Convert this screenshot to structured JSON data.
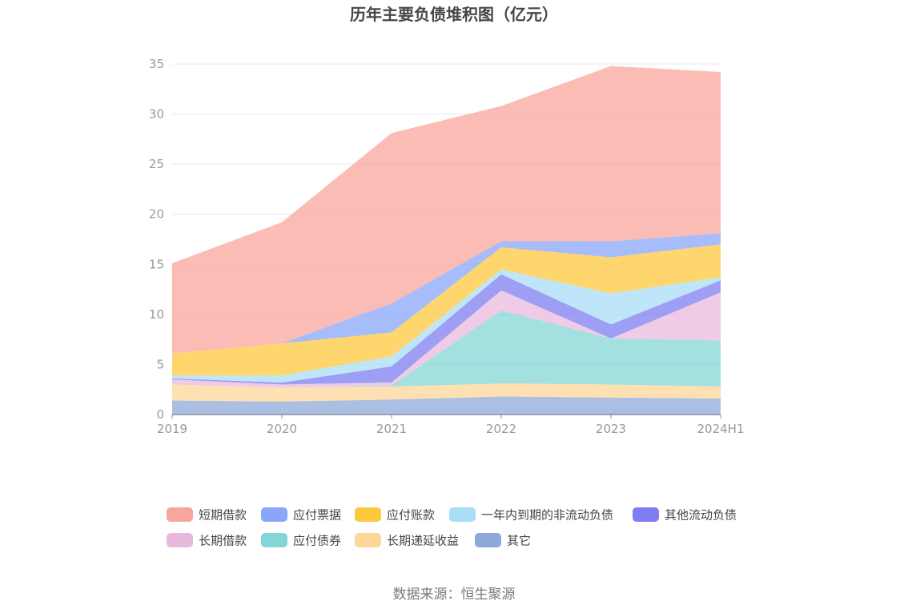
{
  "chart_data": {
    "type": "area",
    "stacked": true,
    "title": "历年主要负债堆积图（亿元）",
    "xlabel": "",
    "ylabel": "",
    "categories": [
      "2019",
      "2020",
      "2021",
      "2022",
      "2023",
      "2024H1"
    ],
    "ylim": [
      0,
      35
    ],
    "yticks": [
      0,
      5,
      10,
      15,
      20,
      25,
      30,
      35
    ],
    "grid": true,
    "legend_position": "bottom",
    "series": [
      {
        "name": "其它",
        "color": "#8ea9d8",
        "values": [
          1.4,
          1.3,
          1.5,
          1.8,
          1.7,
          1.6
        ]
      },
      {
        "name": "长期递延收益",
        "color": "#ffd59a",
        "values": [
          1.6,
          1.4,
          1.3,
          1.3,
          1.3,
          1.2
        ]
      },
      {
        "name": "应付债券",
        "color": "#84d6d6",
        "values": [
          0,
          0,
          0.1,
          7.3,
          4.6,
          4.6
        ]
      },
      {
        "name": "长期借款",
        "color": "#e9b9dc",
        "values": [
          0.5,
          0.3,
          0.3,
          2.0,
          0,
          4.8
        ]
      },
      {
        "name": "其他流动负债",
        "color": "#7f7df2",
        "values": [
          0.1,
          0.2,
          1.6,
          1.6,
          1.4,
          1.2
        ]
      },
      {
        "name": "一年内到期的非流动负债",
        "color": "#a9ddf5",
        "values": [
          0.3,
          0.7,
          1.0,
          0.5,
          3.1,
          0.3
        ]
      },
      {
        "name": "应付账款",
        "color": "#fdc83c",
        "values": [
          2.2,
          3.2,
          2.4,
          2.2,
          3.6,
          3.3
        ]
      },
      {
        "name": "应付票据",
        "color": "#8aa6fa",
        "values": [
          0,
          0,
          2.9,
          0.6,
          1.6,
          1.1
        ]
      },
      {
        "name": "短期借款",
        "color": "#f8a69b",
        "values": [
          9.0,
          12.1,
          17.0,
          13.5,
          17.5,
          16.1
        ]
      }
    ],
    "legend_order": [
      "短期借款",
      "应付票据",
      "应付账款",
      "一年内到期的非流动负债",
      "其他流动负债",
      "长期借款",
      "应付债券",
      "长期递延收益",
      "其它"
    ]
  },
  "source": "数据来源：恒生聚源"
}
